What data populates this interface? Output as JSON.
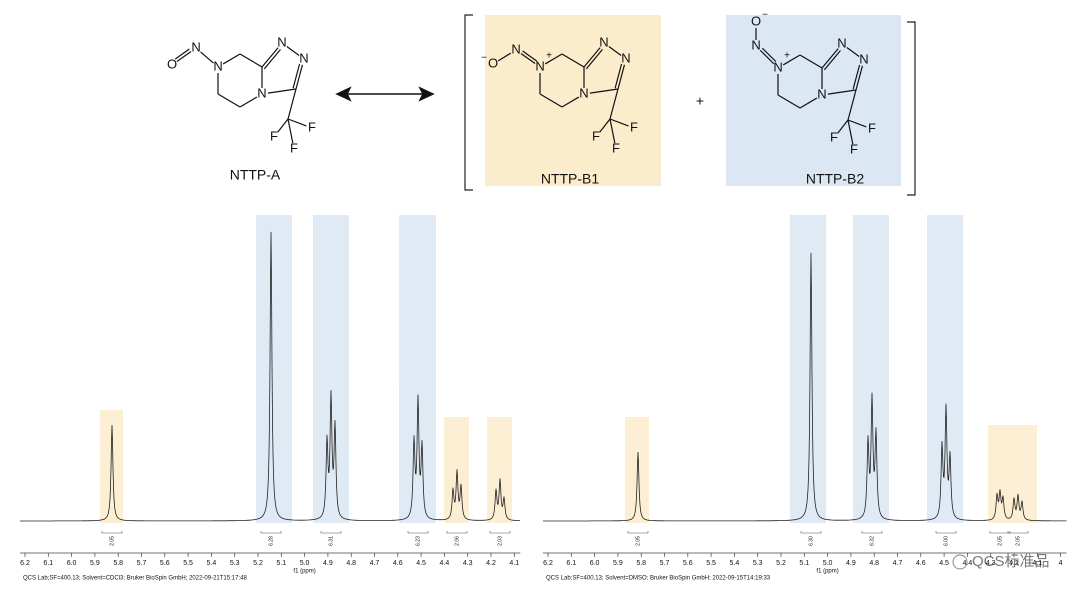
{
  "molecules": [
    {
      "label": "NTTP-A",
      "atoms": [
        "O",
        "N",
        "N",
        "N",
        "N",
        "N",
        "F",
        "F",
        "F"
      ],
      "charges": []
    },
    {
      "label": "NTTP-B1",
      "atoms": [
        "O",
        "N",
        "N",
        "N",
        "N",
        "N",
        "F",
        "F",
        "F"
      ],
      "charges": [
        "−",
        "+"
      ]
    },
    {
      "label": "NTTP-B2",
      "atoms": [
        "O",
        "N",
        "N",
        "N",
        "N",
        "N",
        "F",
        "F",
        "F"
      ],
      "charges": [
        "−",
        "+"
      ]
    }
  ],
  "plus": "+",
  "spectra": [
    {
      "ticks": [
        "6.2",
        "6.1",
        "6.0",
        "5.9",
        "5.8",
        "5.7",
        "5.6",
        "5.5",
        "5.4",
        "5.3",
        "5.2",
        "5.1",
        "5.0",
        "4.9",
        "4.8",
        "4.7",
        "4.6",
        "4.5",
        "4.4",
        "4.3",
        "4.2",
        "4.1"
      ],
      "axis_title": "f1 (ppm)",
      "integrals": [
        "2.05",
        "6.28",
        "6.31",
        "6.23",
        "2.06",
        "2.03"
      ],
      "footer": "QCS Lab;SF=400.13; Solvent=CDCl3; Bruker BioSpin GmbH; 2022-09-21T15:17:48"
    },
    {
      "ticks": [
        "6.2",
        "6.1",
        "6.0",
        "5.9",
        "5.8",
        "5.7",
        "5.6",
        "5.5",
        "5.4",
        "5.3",
        "5.2",
        "5.1",
        "5.0",
        "4.9",
        "4.8",
        "4.7",
        "4.6",
        "4.5",
        "4.4",
        "4.3",
        "4.2",
        "4.1",
        "4"
      ],
      "axis_title": "f1 (ppm)",
      "integrals": [
        "2.05",
        "6.30",
        "6.32",
        "6.00",
        "2.05",
        "2.05"
      ],
      "footer": "QCS Lab;SF=400.13; Solvent=DMSO; Bruker BioSpin GmbH; 2022-09-15T14:19:33"
    }
  ],
  "watermark": "QCS标准品"
}
